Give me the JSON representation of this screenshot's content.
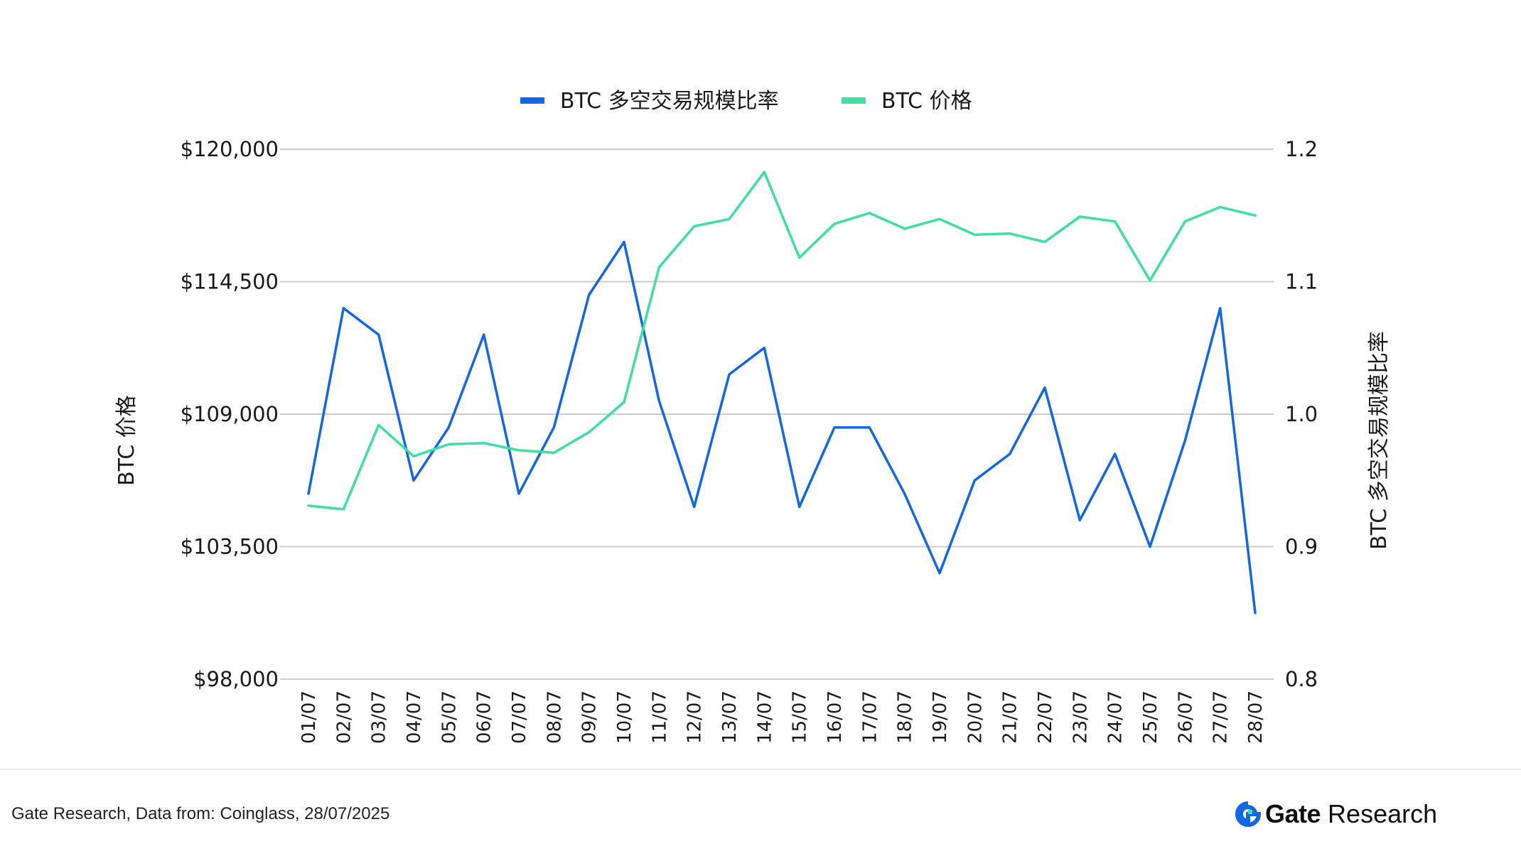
{
  "chart_data": {
    "type": "line",
    "categories": [
      "01/07",
      "02/07",
      "03/07",
      "04/07",
      "05/07",
      "06/07",
      "07/07",
      "08/07",
      "09/07",
      "10/07",
      "11/07",
      "12/07",
      "13/07",
      "14/07",
      "15/07",
      "16/07",
      "17/07",
      "18/07",
      "19/07",
      "20/07",
      "21/07",
      "22/07",
      "23/07",
      "24/07",
      "25/07",
      "26/07",
      "27/07",
      "28/07"
    ],
    "series": [
      {
        "name": "BTC 多空交易规模比率",
        "axis": "right",
        "color": "#1167e8",
        "values": [
          0.94,
          1.08,
          1.06,
          0.95,
          0.99,
          1.06,
          0.94,
          0.99,
          1.09,
          1.13,
          1.01,
          0.93,
          1.03,
          1.05,
          0.93,
          0.99,
          0.99,
          0.94,
          0.88,
          0.95,
          0.97,
          1.02,
          0.92,
          0.97,
          0.9,
          0.98,
          1.08,
          0.85
        ]
      },
      {
        "name": "BTC 价格",
        "axis": "left",
        "color": "#3ee0a2",
        "values": [
          105200,
          105050,
          108550,
          107250,
          107750,
          107800,
          107500,
          107400,
          108250,
          109500,
          115100,
          116800,
          117100,
          119050,
          115500,
          116900,
          117350,
          116700,
          117100,
          116450,
          116500,
          116150,
          117200,
          117000,
          114550,
          117000,
          117600,
          117250
        ]
      }
    ],
    "y_left": {
      "label": "BTC 价格",
      "min": 98000,
      "max": 120000,
      "ticks": [
        "$120,000",
        "$114,500",
        "$109,000",
        "$103,500",
        "$98,000"
      ]
    },
    "y_right": {
      "label": "BTC 多空交易规模比率",
      "min": 0.8,
      "max": 1.2,
      "ticks": [
        "1.2",
        "1.1",
        "1.0",
        "0.9",
        "0.8"
      ]
    },
    "legend": "top-center",
    "grid": true
  },
  "footer": {
    "source": "Gate Research, Data from: Coinglass, 28/07/2025",
    "brand_name": "Gate",
    "brand_sub": "Research"
  }
}
